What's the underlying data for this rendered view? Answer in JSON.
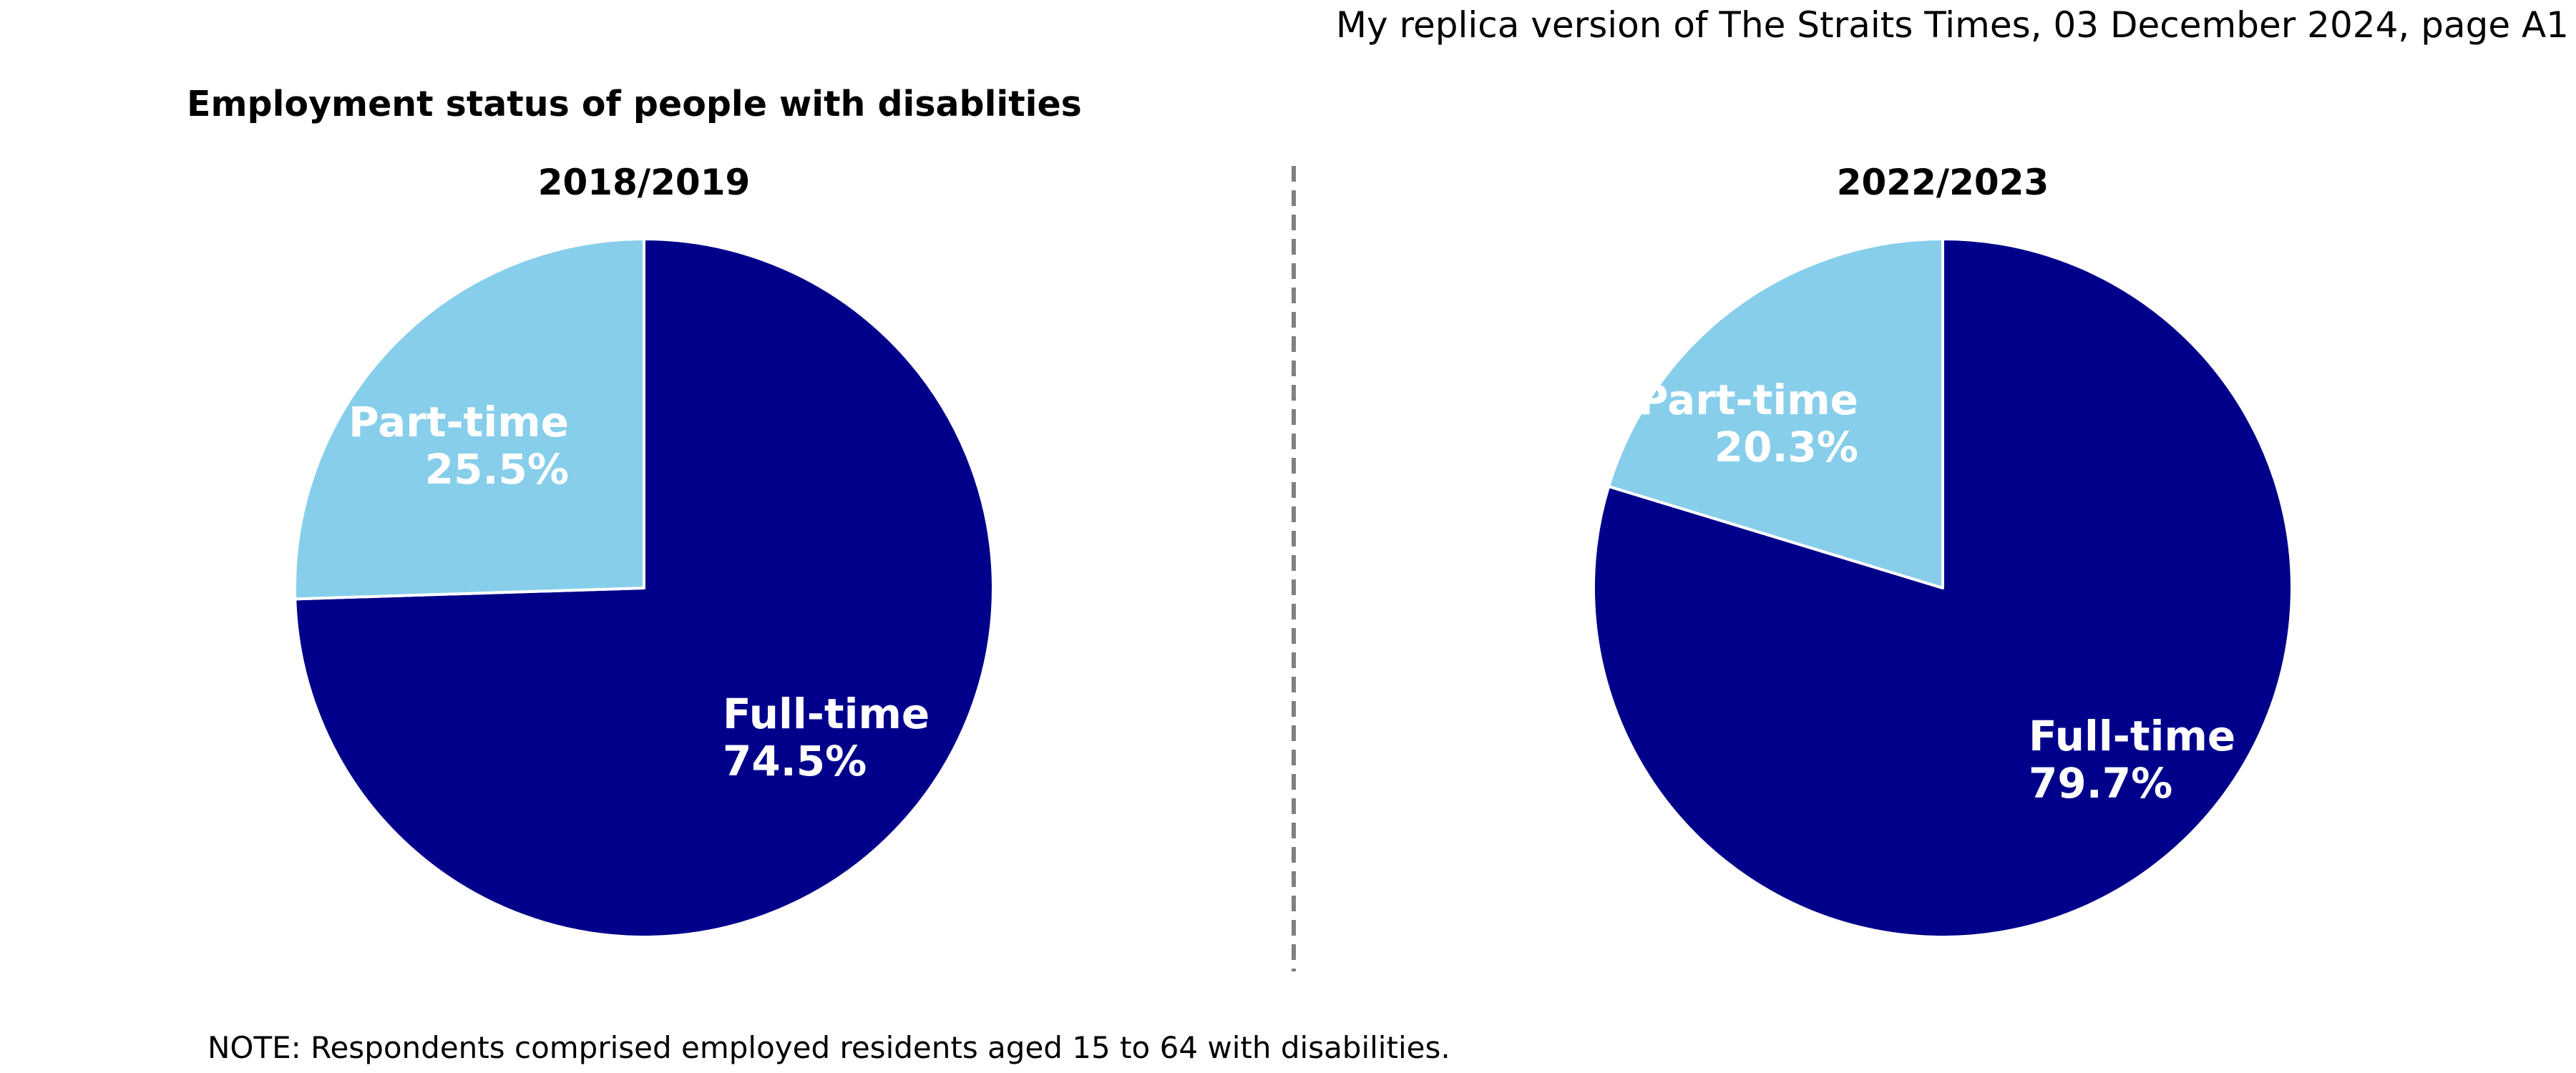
{
  "header": {
    "credit": "My replica version of The Straits Times, 03 December 2024, page A1"
  },
  "title": "Employment status of people with disablities",
  "note": "NOTE: Respondents comprised employed residents aged 15 to 64 with disabilities.",
  "colors": {
    "full_time": "#00008B",
    "part_time": "#87CEEB",
    "label_text": "#FFFFFF",
    "divider": "#808080"
  },
  "chart_data": [
    {
      "type": "pie",
      "title": "2018/2019",
      "slices": [
        {
          "label": "Full-time",
          "value": 74.5,
          "display": "74.5%",
          "color": "#00008B"
        },
        {
          "label": "Part-time",
          "value": 25.5,
          "display": "25.5%",
          "color": "#87CEEB"
        }
      ]
    },
    {
      "type": "pie",
      "title": "2022/2023",
      "slices": [
        {
          "label": "Full-time",
          "value": 79.7,
          "display": "79.7%",
          "color": "#00008B"
        },
        {
          "label": "Part-time",
          "value": 20.3,
          "display": "20.3%",
          "color": "#87CEEB"
        }
      ]
    }
  ]
}
